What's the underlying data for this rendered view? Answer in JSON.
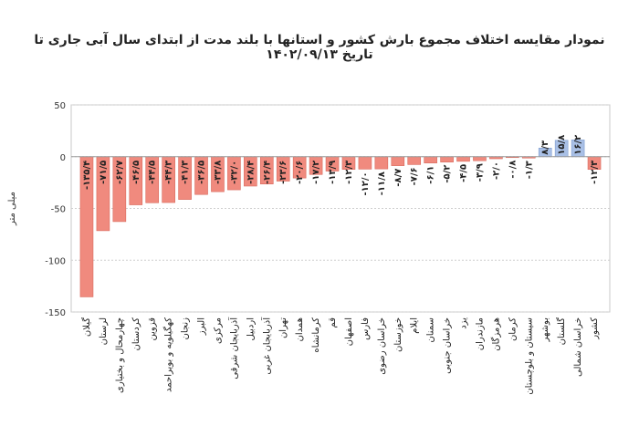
{
  "chart_data": {
    "type": "bar",
    "title": "نمودار مقایسه اختلاف مجموع بارش کشور و استانها با بلند مدت از ابتدای سال آبی جاری تا تاریخ ۱۴۰۲/۰۹/۱۳",
    "ylabel": "میلی متر",
    "xlabel": "",
    "ylim": [
      -150,
      50
    ],
    "yticks": [
      50,
      0,
      -50,
      -100,
      -150
    ],
    "ytick_labels": [
      "50",
      "0",
      "-50",
      "-100",
      "-150"
    ],
    "grid": true,
    "colors": {
      "negative": "#f08a7e",
      "positive": "#a9c0e6",
      "negative_edge": "#d9695c",
      "positive_edge": "#7d9ccf"
    },
    "categories": [
      "گیلان",
      "لرستان",
      "چهارمحال و بختیاری",
      "کردستان",
      "قزوین",
      "کهگیلویه و بویراحمد",
      "زنجان",
      "البرز",
      "مرکزی",
      "آذربایجان شرقی",
      "اردبیل",
      "آذربایجان غربی",
      "تهران",
      "همدان",
      "کرمانشاه",
      "قم",
      "اصفهان",
      "فارس",
      "خراسان رضوی",
      "خوزستان",
      "ایلام",
      "سمنان",
      "خراسان جنوبی",
      "یزد",
      "مازندران",
      "هرمزگان",
      "کرمان",
      "سیستان و بلوچستان",
      "بوشهر",
      "گلستان",
      "خراسان شمالی",
      "کشور"
    ],
    "values": [
      -135.4,
      -71.5,
      -62.7,
      -46.5,
      -44.5,
      -44.3,
      -41.3,
      -36.5,
      -33.8,
      -32.0,
      -28.4,
      -26.4,
      -23.6,
      -20.6,
      -17.2,
      -13.9,
      -12.3,
      -12.0,
      -11.8,
      -8.7,
      -7.6,
      -6.1,
      -5.2,
      -4.5,
      -3.9,
      -2.0,
      -0.8,
      -1.3,
      8.3,
      15.8,
      16.2,
      -12.3
    ],
    "value_labels": [
      "-۱۳۵/۴",
      "-۷۱/۵",
      "-۶۲/۷",
      "-۴۶/۵",
      "-۴۴/۵",
      "-۴۴/۳",
      "-۴۱/۳",
      "-۳۶/۵",
      "-۳۳/۸",
      "-۳۲/۰",
      "-۲۸/۴",
      "-۲۶/۴",
      "-۲۳/۶",
      "-۲۰/۶",
      "-۱۷/۲",
      "-۱۳/۹",
      "-۱۲/۳",
      "-۱۲/۰",
      "-۱۱/۸",
      "-۸/۷",
      "-۷/۶",
      "-۶/۱",
      "-۵/۲",
      "-۴/۵",
      "-۳/۹",
      "-۲/۰",
      "-۰/۸",
      "-۱/۳",
      "۸/۳",
      "۱۵/۸",
      "۱۶/۲",
      "-۱۲/۳"
    ]
  }
}
